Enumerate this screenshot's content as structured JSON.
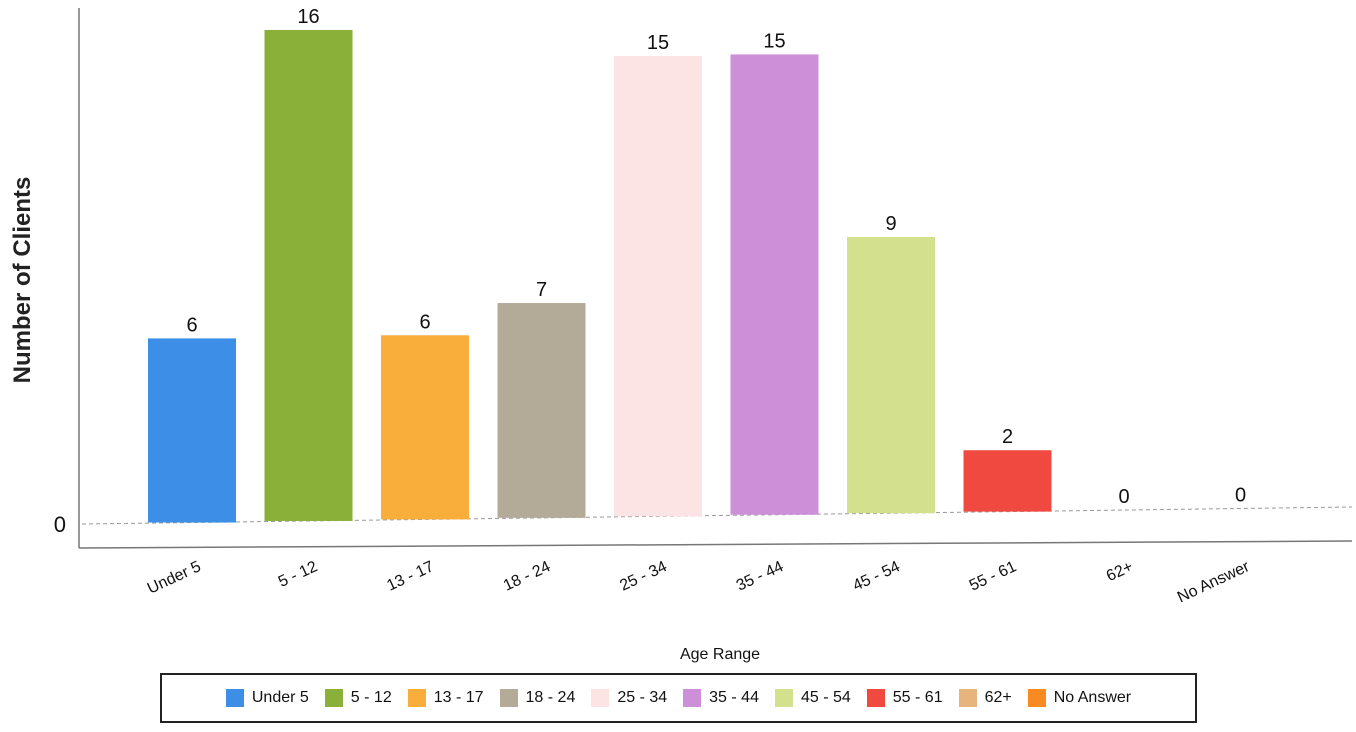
{
  "chart_data": {
    "type": "bar",
    "categories": [
      "Under 5",
      "5 - 12",
      "13 - 17",
      "18 - 24",
      "25 - 34",
      "35 - 44",
      "45 - 54",
      "55 - 61",
      "62+",
      "No Answer"
    ],
    "values": [
      6,
      16,
      6,
      7,
      15,
      15,
      9,
      2,
      0,
      0
    ],
    "colors": [
      "#3d8ee6",
      "#8bb03a",
      "#f9ad3a",
      "#b4aa98",
      "#fde4e4",
      "#cc8fd8",
      "#d3e08e",
      "#f04a40",
      "#e6b47c",
      "#f98a22"
    ],
    "xlabel": "Age Range",
    "ylabel": "Number of Clients",
    "y_tick_labels": [
      "0"
    ],
    "ylim": [
      0,
      16
    ],
    "data_labels": true,
    "grid": false,
    "legend_placement": "bottom",
    "legend": [
      "Under 5",
      "5 - 12",
      "13 - 17",
      "18 - 24",
      "25 - 34",
      "35 - 44",
      "45 - 54",
      "55 - 61",
      "62+",
      "No Answer"
    ]
  }
}
